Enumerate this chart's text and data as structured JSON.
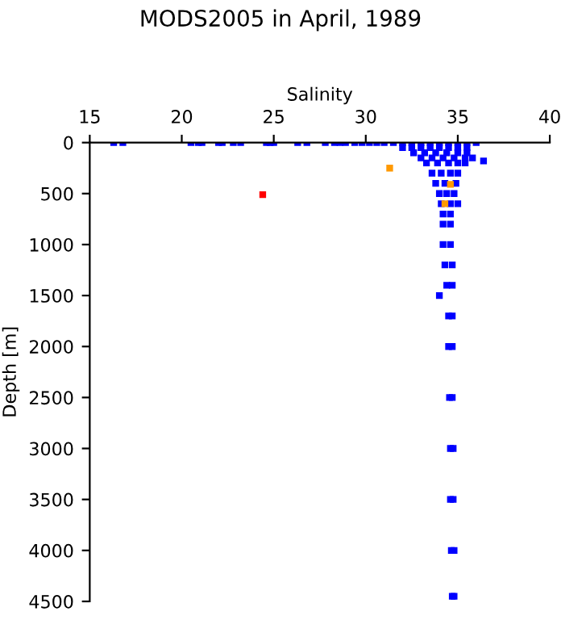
{
  "chart_data": {
    "type": "scatter",
    "title": "MODS2005 in April, 1989",
    "xlabel": "Salinity",
    "ylabel": "Depth [m]",
    "xlim": [
      15,
      40
    ],
    "xticks": [
      15,
      20,
      25,
      30,
      35,
      40
    ],
    "ylim": [
      4500,
      0
    ],
    "yticks": [
      0,
      500,
      1000,
      1500,
      2000,
      2500,
      3000,
      3500,
      4000,
      4500
    ],
    "grid": false,
    "legend": false,
    "marker": "square",
    "series": [
      {
        "color": "#0000ff",
        "x": [
          16.3,
          16.8,
          20.5,
          20.9,
          21.1,
          22.0,
          22.2,
          22.8,
          23.2,
          24.6,
          24.8,
          25.0,
          26.3,
          26.8,
          27.8,
          28.3,
          28.6,
          28.9,
          29.4,
          29.8,
          30.2,
          30.6,
          31.0,
          31.5,
          32.0,
          32.5,
          33.0,
          33.5,
          34.0,
          34.5,
          35.0,
          35.5,
          36.0,
          32.0,
          32.5,
          33.0,
          33.5,
          34.0,
          34.5,
          35.0,
          35.5,
          32.6,
          33.2,
          33.8,
          34.4,
          35.0,
          35.5,
          33.0,
          33.6,
          34.2,
          34.8,
          35.4,
          35.8,
          36.4,
          33.3,
          33.9,
          34.5,
          35.0,
          35.4,
          33.6,
          34.1,
          34.6,
          35.0,
          33.8,
          34.3,
          34.9,
          34.0,
          34.4,
          34.8,
          34.1,
          34.6,
          35.0,
          34.2,
          34.6,
          34.2,
          34.6,
          34.2,
          34.6,
          34.3,
          34.7,
          34.4,
          34.7,
          34.0,
          34.5,
          34.7,
          34.5,
          34.7,
          34.55,
          34.7,
          34.6,
          34.75,
          34.6,
          34.75,
          34.65,
          34.8,
          34.7,
          34.8
        ],
        "values": [
          0,
          0,
          0,
          0,
          0,
          0,
          0,
          0,
          0,
          0,
          0,
          0,
          0,
          0,
          0,
          0,
          0,
          0,
          0,
          0,
          0,
          0,
          0,
          0,
          0,
          0,
          0,
          0,
          0,
          0,
          0,
          0,
          0,
          50,
          50,
          50,
          50,
          50,
          50,
          50,
          50,
          100,
          100,
          100,
          100,
          100,
          100,
          150,
          150,
          150,
          150,
          150,
          150,
          180,
          200,
          200,
          200,
          200,
          200,
          300,
          300,
          300,
          300,
          400,
          400,
          400,
          500,
          500,
          500,
          600,
          600,
          600,
          700,
          700,
          800,
          800,
          1000,
          1000,
          1200,
          1200,
          1400,
          1400,
          1500,
          1700,
          1700,
          2000,
          2000,
          2500,
          2500,
          3000,
          3000,
          3500,
          3500,
          4000,
          4000,
          4450,
          4450
        ]
      },
      {
        "color": "#ff9900",
        "x": [
          31.3,
          34.6,
          34.3
        ],
        "values": [
          250,
          410,
          600
        ]
      },
      {
        "color": "#ff0000",
        "x": [
          24.4
        ],
        "values": [
          510
        ]
      }
    ]
  }
}
